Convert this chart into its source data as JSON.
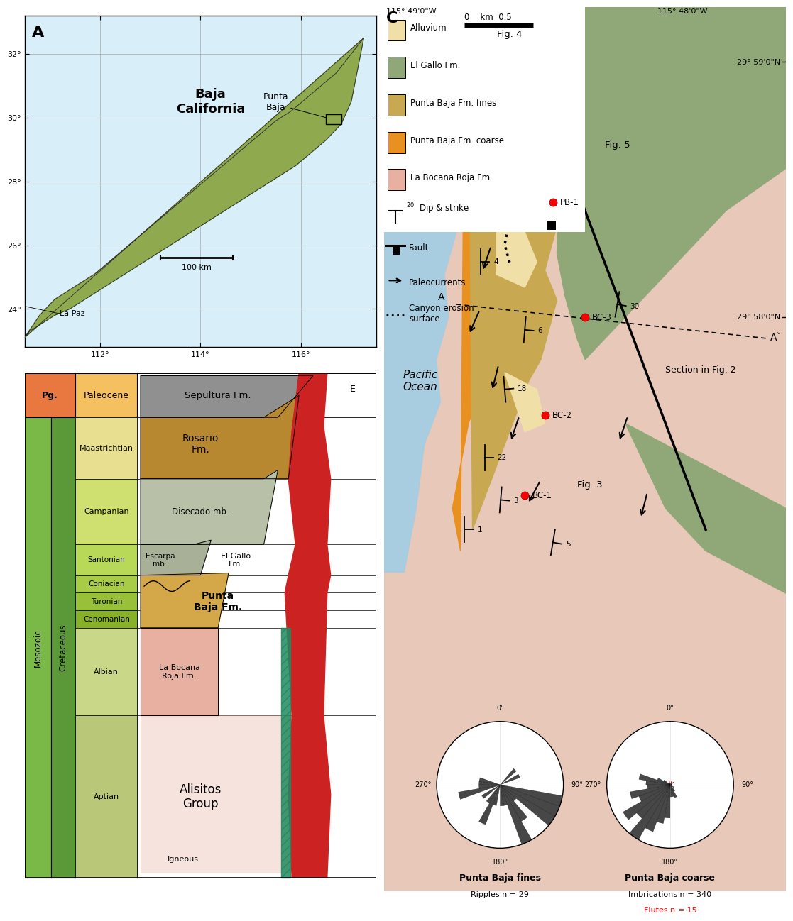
{
  "fig_width": 10.89,
  "fig_height": 12.46,
  "panel_A": {
    "baja_color": "#8faa4e",
    "lat_ticks": [
      24,
      26,
      28,
      30,
      32
    ],
    "lon_ticks": [
      112,
      114,
      116
    ],
    "xlim": [
      110.5,
      117.5
    ],
    "ylim": [
      22.8,
      33.2
    ]
  },
  "panel_B": {
    "pg_color": "#e87840",
    "paleocene_color": "#f5c060",
    "mesozoic_color": "#7ab848",
    "cretaceous_color": "#5a9838",
    "maastrichtian_color": "#e8e090",
    "campanian_color": "#d0e070",
    "santonian_color": "#b8d858",
    "coniacian_color": "#a8cc48",
    "turonian_color": "#98c038",
    "cenomanian_color": "#88b028",
    "albian_color": "#c8d888",
    "aptian_color": "#b8c878",
    "sepultura_color": "#909090",
    "rosario_color": "#b88830",
    "disecado_color": "#b8c0a8",
    "escarpa_color": "#a8b098",
    "puntabaja_fines_color": "#d4a848",
    "labocana_color": "#e8b0a0",
    "igneous_color": "#cc2222",
    "dike_color": "#208860"
  },
  "panel_C": {
    "alluvium_color": "#f0e0a8",
    "elgallo_color": "#90a878",
    "puntabaja_fines_color": "#c8a850",
    "puntabaja_coarse_color": "#e89020",
    "labocana_color": "#e8b0a0",
    "ocean_color": "#a8cce0",
    "background_color": "#e8c8b8"
  }
}
